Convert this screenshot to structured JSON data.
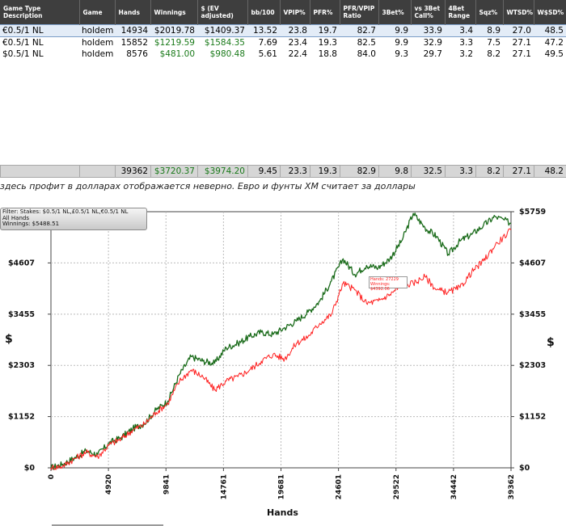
{
  "table": {
    "headers": [
      "Game Type Description",
      "Game",
      "Hands",
      "Winnings",
      "$ (EV adjusted)",
      "bb/100",
      "VPIP%",
      "PFR%",
      "PFR/VPIP Ratio",
      "3Bet%",
      "vs 3Bet Call%",
      "4Bet Range",
      "Sqz%",
      "WTSD%",
      "W$SD%"
    ],
    "rows": [
      [
        "€0.5/1 NL",
        "holdem",
        "14934",
        "$2019.78",
        "$1409.37",
        "13.52",
        "23.8",
        "19.7",
        "82.7",
        "9.9",
        "33.9",
        "3.4",
        "8.9",
        "27.0",
        "48.5"
      ],
      [
        "€0.5/1 NL",
        "holdem",
        "15852",
        "$1219.59",
        "$1584.35",
        "7.69",
        "23.4",
        "19.3",
        "82.5",
        "9.9",
        "32.9",
        "3.3",
        "7.5",
        "27.1",
        "47.2"
      ],
      [
        "$0.5/1 NL",
        "holdem",
        "8576",
        "$481.00",
        "$980.48",
        "5.61",
        "22.4",
        "18.8",
        "84.0",
        "9.3",
        "29.7",
        "3.2",
        "8.2",
        "27.1",
        "49.5"
      ]
    ],
    "totals": [
      "",
      "",
      "39362",
      "$3720.37",
      "$3974.20",
      "9.45",
      "23.3",
      "19.3",
      "82.9",
      "9.8",
      "32.5",
      "3.3",
      "8.2",
      "27.1",
      "48.2"
    ]
  },
  "note": "здесь профит в долларах отображается неверно. Евро и фунты ХМ считает за доллары",
  "filter_box": {
    "line1": "Filter: Stakes: $0.5/1 NL,£0.5/1 NL,€0.5/1 NL",
    "line2": "All Hands",
    "line3": "Winnings: $5488.51"
  },
  "tooltip": {
    "line1": "Hands: 27229",
    "line2": "Winnings: $4392.06"
  },
  "colors": {
    "winnings_line": "#1a6b1a",
    "ev_line": "#ff2020",
    "header_bg": "#3e3e3e",
    "positive_value": "#1a7a1a"
  },
  "chart_data": {
    "type": "line",
    "title": "",
    "xlabel": "Hands",
    "ylabel": "$",
    "x_ticks": [
      "0",
      "4920",
      "9841",
      "14761",
      "19681",
      "24601",
      "29522",
      "34442",
      "39362"
    ],
    "y_ticks": [
      "$0",
      "$1152",
      "$2303",
      "$3455",
      "$4607",
      "$5759"
    ],
    "xlim": [
      0,
      39362
    ],
    "ylim": [
      0,
      5759
    ],
    "grid": true,
    "series": [
      {
        "name": "Winnings",
        "color": "#1a6b1a",
        "points": [
          [
            0,
            0
          ],
          [
            1000,
            80
          ],
          [
            2000,
            220
          ],
          [
            3000,
            380
          ],
          [
            4000,
            300
          ],
          [
            5000,
            560
          ],
          [
            6000,
            680
          ],
          [
            7000,
            880
          ],
          [
            8000,
            1000
          ],
          [
            9000,
            1300
          ],
          [
            10000,
            1500
          ],
          [
            11000,
            2100
          ],
          [
            12000,
            2500
          ],
          [
            13000,
            2400
          ],
          [
            14000,
            2350
          ],
          [
            15000,
            2700
          ],
          [
            16000,
            2800
          ],
          [
            17000,
            2950
          ],
          [
            18000,
            3050
          ],
          [
            19000,
            3000
          ],
          [
            20000,
            3150
          ],
          [
            21000,
            3300
          ],
          [
            22000,
            3500
          ],
          [
            23000,
            3750
          ],
          [
            24000,
            4200
          ],
          [
            25000,
            4700
          ],
          [
            26000,
            4350
          ],
          [
            27000,
            4550
          ],
          [
            28000,
            4500
          ],
          [
            29000,
            4700
          ],
          [
            30000,
            5100
          ],
          [
            31000,
            5720
          ],
          [
            32000,
            5400
          ],
          [
            33000,
            5200
          ],
          [
            34000,
            4800
          ],
          [
            35000,
            5100
          ],
          [
            36000,
            5250
          ],
          [
            37000,
            5450
          ],
          [
            38000,
            5650
          ],
          [
            39362,
            5500
          ]
        ]
      },
      {
        "name": "EV adjusted",
        "color": "#ff2020",
        "points": [
          [
            0,
            0
          ],
          [
            1000,
            40
          ],
          [
            2000,
            200
          ],
          [
            3000,
            350
          ],
          [
            4000,
            250
          ],
          [
            5000,
            520
          ],
          [
            6000,
            650
          ],
          [
            7000,
            850
          ],
          [
            8000,
            980
          ],
          [
            9000,
            1250
          ],
          [
            10000,
            1450
          ],
          [
            11000,
            1950
          ],
          [
            12000,
            2200
          ],
          [
            13000,
            2050
          ],
          [
            14000,
            1750
          ],
          [
            15000,
            1950
          ],
          [
            16000,
            2050
          ],
          [
            17000,
            2200
          ],
          [
            18000,
            2400
          ],
          [
            19000,
            2550
          ],
          [
            20000,
            2450
          ],
          [
            21000,
            2800
          ],
          [
            22000,
            2950
          ],
          [
            23000,
            3250
          ],
          [
            24000,
            3450
          ],
          [
            25000,
            4150
          ],
          [
            26000,
            4000
          ],
          [
            27000,
            3700
          ],
          [
            28000,
            3750
          ],
          [
            29000,
            3900
          ],
          [
            30000,
            4100
          ],
          [
            31000,
            4150
          ],
          [
            32000,
            4300
          ],
          [
            33000,
            4000
          ],
          [
            34000,
            3950
          ],
          [
            35000,
            4050
          ],
          [
            36000,
            4400
          ],
          [
            37000,
            4650
          ],
          [
            38000,
            5000
          ],
          [
            39362,
            5350
          ]
        ]
      }
    ]
  }
}
